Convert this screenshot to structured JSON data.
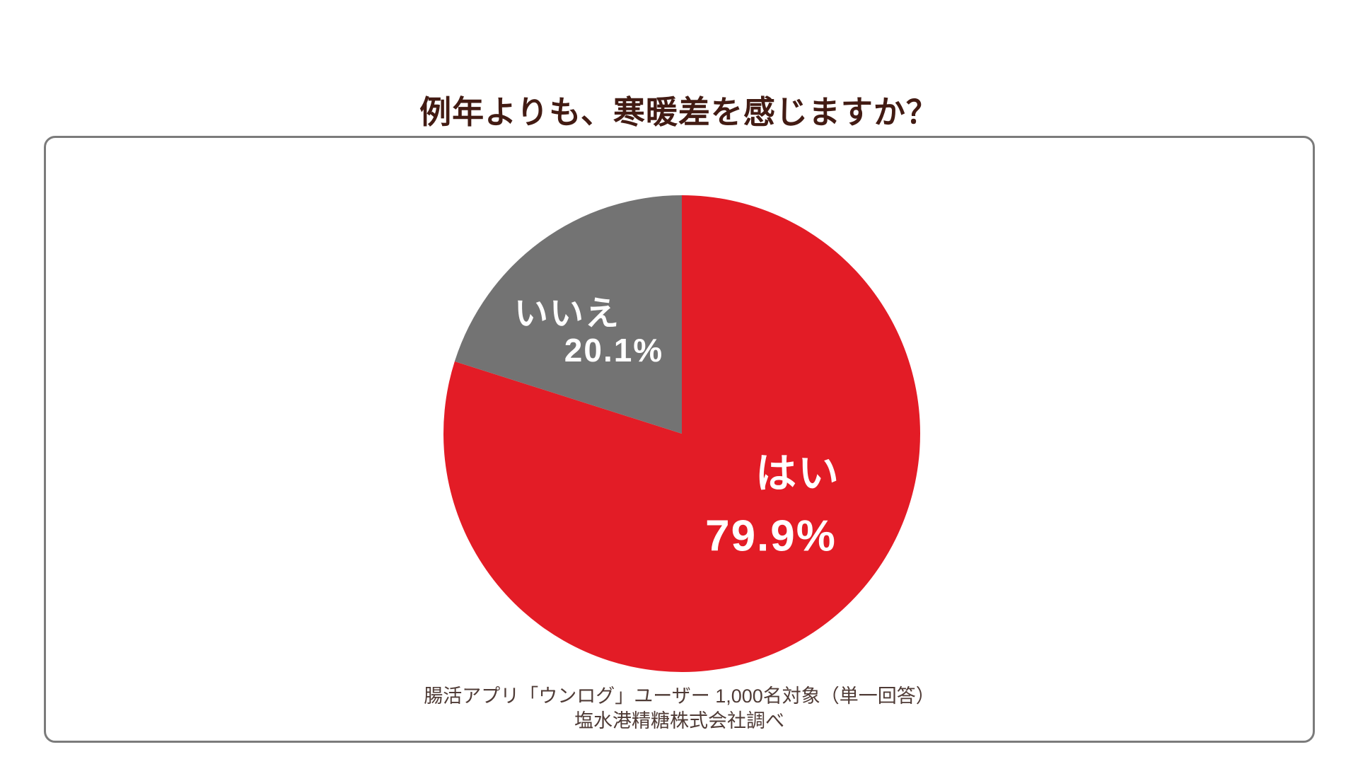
{
  "page": {
    "background_color": "#ffffff",
    "title_color": "#421B13",
    "panel_border_color": "#7b7b7b"
  },
  "chart_data": {
    "type": "pie",
    "title": "例年よりも、寒暖差を感じますか？",
    "start_angle_deg": 0,
    "direction": "clockwise",
    "legend_position": "none",
    "slices": [
      {
        "label": "はい",
        "value": 79.9,
        "display": "79.9%",
        "color": "#E31C26",
        "text_color": "#ffffff"
      },
      {
        "label": "いいえ",
        "value": 20.1,
        "display": "20.1%",
        "color": "#737373",
        "text_color": "#ffffff"
      }
    ]
  },
  "footnote": {
    "line1": "腸活アプリ「ウンログ」ユーザー 1,000名対象（単一回答）",
    "line2": "塩水港精糖株式会社調べ"
  }
}
